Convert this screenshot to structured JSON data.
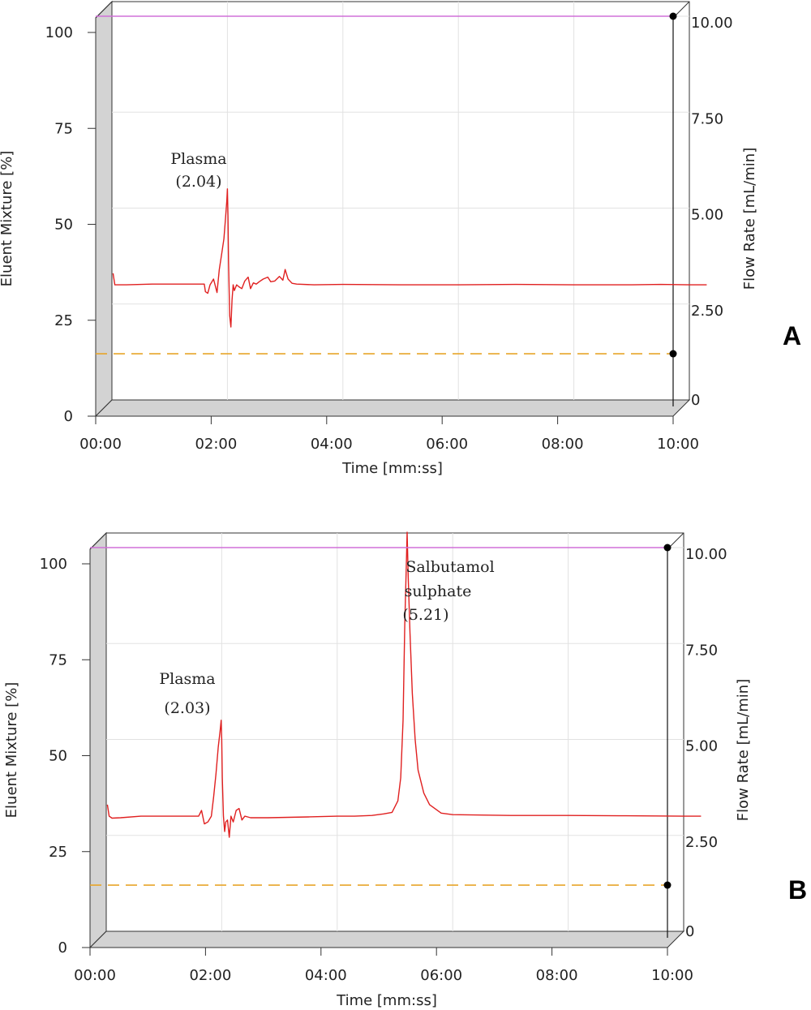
{
  "chart_data": [
    {
      "type": "line",
      "panel_label": "A",
      "xlabel": "Time [mm:ss]",
      "ylabel": "Eluent Mixture [%]",
      "y2label": "Flow Rate [mL/min]",
      "x_ticks": [
        "00:00",
        "02:00",
        "04:00",
        "06:00",
        "08:00",
        "10:00"
      ],
      "y_ticks": [
        "0",
        "25",
        "50",
        "75",
        "100"
      ],
      "y2_ticks": [
        "0",
        "2.50",
        "5.00",
        "7.50",
        "10.00"
      ],
      "xlim": [
        0,
        10
      ],
      "ylim": [
        0,
        100
      ],
      "y2lim": [
        0,
        10
      ],
      "grid": true,
      "series": [
        {
          "color": "#e02020",
          "x": [
            0.02,
            0.05,
            0.25,
            0.7,
            1.6,
            1.62,
            1.66,
            1.7,
            1.76,
            1.82,
            1.86,
            1.9,
            1.94,
            1.97,
            1.99,
            2.0,
            2.01,
            2.02,
            2.04,
            2.06,
            2.08,
            2.1,
            2.12,
            2.16,
            2.2,
            2.25,
            2.3,
            2.36,
            2.4,
            2.45,
            2.5,
            2.55,
            2.62,
            2.7,
            2.75,
            2.82,
            2.9,
            2.96,
            3.0,
            3.05,
            3.12,
            3.2,
            3.5,
            4.0,
            5.0,
            6.0,
            7.0,
            8.0,
            9.0,
            9.5,
            10.0,
            10.3
          ],
          "y": [
            33,
            30,
            30,
            30.2,
            30.2,
            28.2,
            27.8,
            30,
            31.5,
            28,
            34,
            38,
            42,
            48,
            52,
            55,
            48,
            36,
            22,
            19,
            26,
            30,
            28.5,
            30,
            29.5,
            29,
            31,
            32,
            29,
            30.5,
            30.2,
            30.8,
            31.5,
            32,
            30.8,
            31,
            32.2,
            31.2,
            34,
            31.5,
            30.4,
            30.2,
            30,
            30.1,
            30,
            30,
            30.1,
            30,
            30,
            30.1,
            30,
            30
          ]
        },
        {
          "color": "#d070d8",
          "x": [
            0,
            10
          ],
          "y2": [
            10,
            10
          ]
        },
        {
          "color": "#e8a52a",
          "x": [
            0,
            10
          ],
          "y": [
            15,
            15
          ]
        }
      ],
      "annotations": [
        {
          "lines": [
            "Plasma",
            "(2.04)"
          ],
          "x": 2.04
        }
      ]
    },
    {
      "type": "line",
      "panel_label": "B",
      "xlabel": "Time [mm:ss]",
      "ylabel": "Eluent Mixture [%]",
      "y2label": "Flow Rate [mL/min]",
      "x_ticks": [
        "00:00",
        "02:00",
        "04:00",
        "06:00",
        "08:00",
        "10:00"
      ],
      "y_ticks": [
        "0",
        "25",
        "50",
        "75",
        "100"
      ],
      "y2_ticks": [
        "0",
        "2.50",
        "5.00",
        "7.50",
        "10.00"
      ],
      "xlim": [
        0,
        10
      ],
      "ylim": [
        0,
        100
      ],
      "y2lim": [
        0,
        10
      ],
      "grid": true,
      "series": [
        {
          "color": "#e02020",
          "x": [
            0.02,
            0.05,
            0.1,
            0.25,
            0.6,
            1.6,
            1.65,
            1.7,
            1.76,
            1.82,
            1.86,
            1.9,
            1.94,
            1.97,
            1.99,
            2.0,
            2.01,
            2.03,
            2.05,
            2.07,
            2.1,
            2.13,
            2.16,
            2.2,
            2.25,
            2.3,
            2.35,
            2.4,
            2.45,
            2.5,
            2.8,
            3.5,
            4.0,
            4.3,
            4.6,
            4.8,
            4.95,
            5.05,
            5.1,
            5.14,
            5.17,
            5.2,
            5.21,
            5.23,
            5.26,
            5.3,
            5.35,
            5.4,
            5.5,
            5.6,
            5.8,
            6.0,
            7.0,
            8.0,
            9.0,
            10.0,
            10.3
          ],
          "y": [
            33,
            30,
            29.5,
            29.6,
            30,
            30,
            31.5,
            28,
            28.5,
            30,
            35,
            41,
            48,
            52,
            55,
            50,
            40,
            30,
            26,
            28.5,
            29,
            24.5,
            30,
            28.5,
            31.5,
            32,
            29,
            30,
            29.8,
            29.6,
            29.6,
            29.8,
            30,
            30,
            30.2,
            30.6,
            31,
            34,
            40,
            55,
            80,
            97,
            104,
            92,
            78,
            62,
            50,
            42,
            36,
            33,
            30.8,
            30.4,
            30.2,
            30.2,
            30.1,
            30,
            30
          ]
        },
        {
          "color": "#d070d8",
          "x": [
            0,
            10
          ],
          "y2": [
            10,
            10
          ]
        },
        {
          "color": "#e8a52a",
          "x": [
            0,
            10
          ],
          "y": [
            15,
            15
          ]
        }
      ],
      "annotations": [
        {
          "lines": [
            "Plasma",
            "(2.03)"
          ],
          "x": 2.03
        },
        {
          "lines": [
            "Salbutamol",
            "sulphate",
            "(5.21)"
          ],
          "x": 5.21
        }
      ]
    }
  ]
}
